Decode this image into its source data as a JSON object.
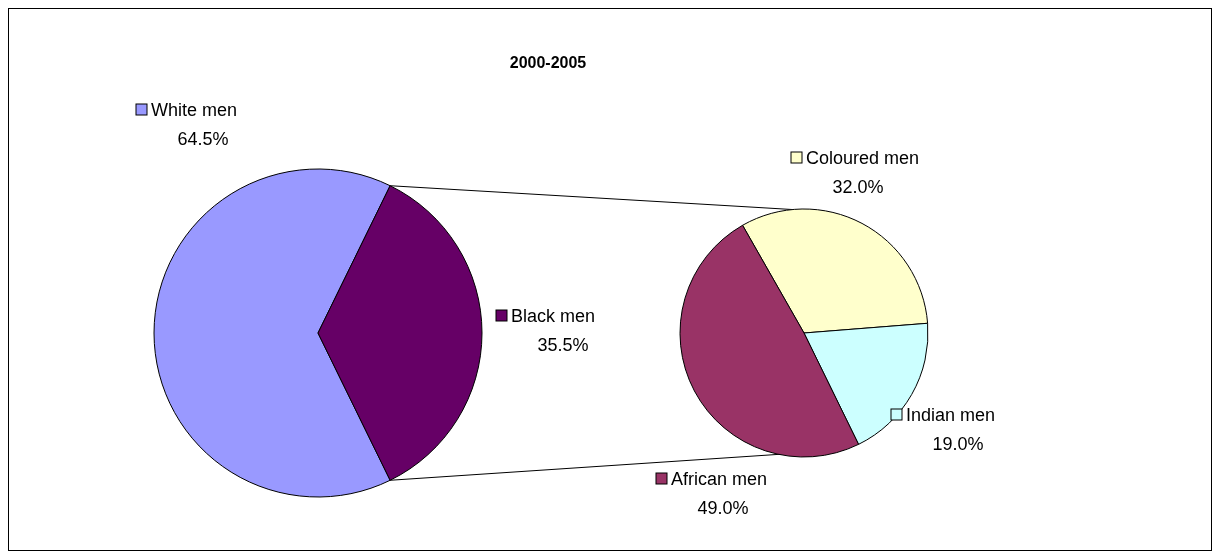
{
  "chart_data": [
    {
      "type": "pie",
      "title": "2000-2005",
      "categories": [
        "White men",
        "Black men"
      ],
      "values": [
        64.5,
        35.5
      ],
      "colors": [
        "#9999ff",
        "#660066"
      ],
      "value_labels": [
        "64.5%",
        "35.5%"
      ],
      "legend": "right"
    },
    {
      "type": "pie",
      "categories": [
        "Coloured men",
        "Indian men",
        "African men"
      ],
      "values": [
        32.0,
        19.0,
        49.0
      ],
      "colors": [
        "#ffffcc",
        "#ccffff",
        "#993366"
      ],
      "value_labels": [
        "32.0%",
        "19.0%",
        "49.0%"
      ],
      "legend": "right"
    }
  ]
}
